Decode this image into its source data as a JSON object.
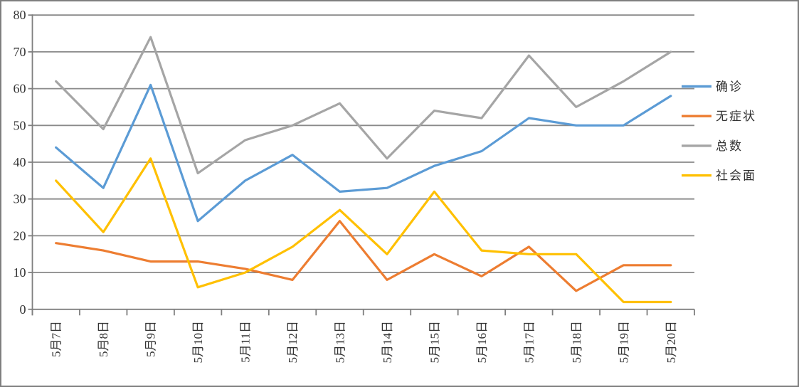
{
  "chart_data": {
    "type": "line",
    "title": "",
    "xlabel": "",
    "ylabel": "",
    "categories": [
      "5月7日",
      "5月8日",
      "5月9日",
      "5月10日",
      "5月11日",
      "5月12日",
      "5月13日",
      "5月14日",
      "5月15日",
      "5月16日",
      "5月17日",
      "5月18日",
      "5月19日",
      "5月20日"
    ],
    "series": [
      {
        "key": "confirmed",
        "name": "确诊",
        "color": "#5B9BD5",
        "values": [
          44,
          33,
          61,
          24,
          35,
          42,
          32,
          33,
          39,
          43,
          52,
          50,
          50,
          58
        ]
      },
      {
        "key": "asymptomatic",
        "name": "无症状",
        "color": "#ED7D31",
        "values": [
          18,
          16,
          13,
          13,
          11,
          8,
          24,
          8,
          15,
          9,
          17,
          5,
          12,
          12
        ]
      },
      {
        "key": "total",
        "name": "总数",
        "color": "#A5A5A5",
        "values": [
          62,
          49,
          74,
          37,
          46,
          50,
          56,
          41,
          54,
          52,
          69,
          55,
          62,
          70
        ]
      },
      {
        "key": "community",
        "name": "社会面",
        "color": "#FFC000",
        "values": [
          35,
          21,
          41,
          6,
          10,
          17,
          27,
          15,
          32,
          16,
          15,
          15,
          2,
          2
        ]
      }
    ],
    "ylim": [
      0,
      80
    ],
    "ytick_step": 10,
    "ytick_labels": [
      "0",
      "10",
      "20",
      "30",
      "40",
      "50",
      "60",
      "70",
      "80"
    ],
    "grid": true,
    "legend_position": "right",
    "colors": {
      "axis": "#7f7f7f",
      "gridline": "#8a8a8a",
      "text": "#333333",
      "background": "#ffffff",
      "border": "#7f7f7f"
    }
  }
}
